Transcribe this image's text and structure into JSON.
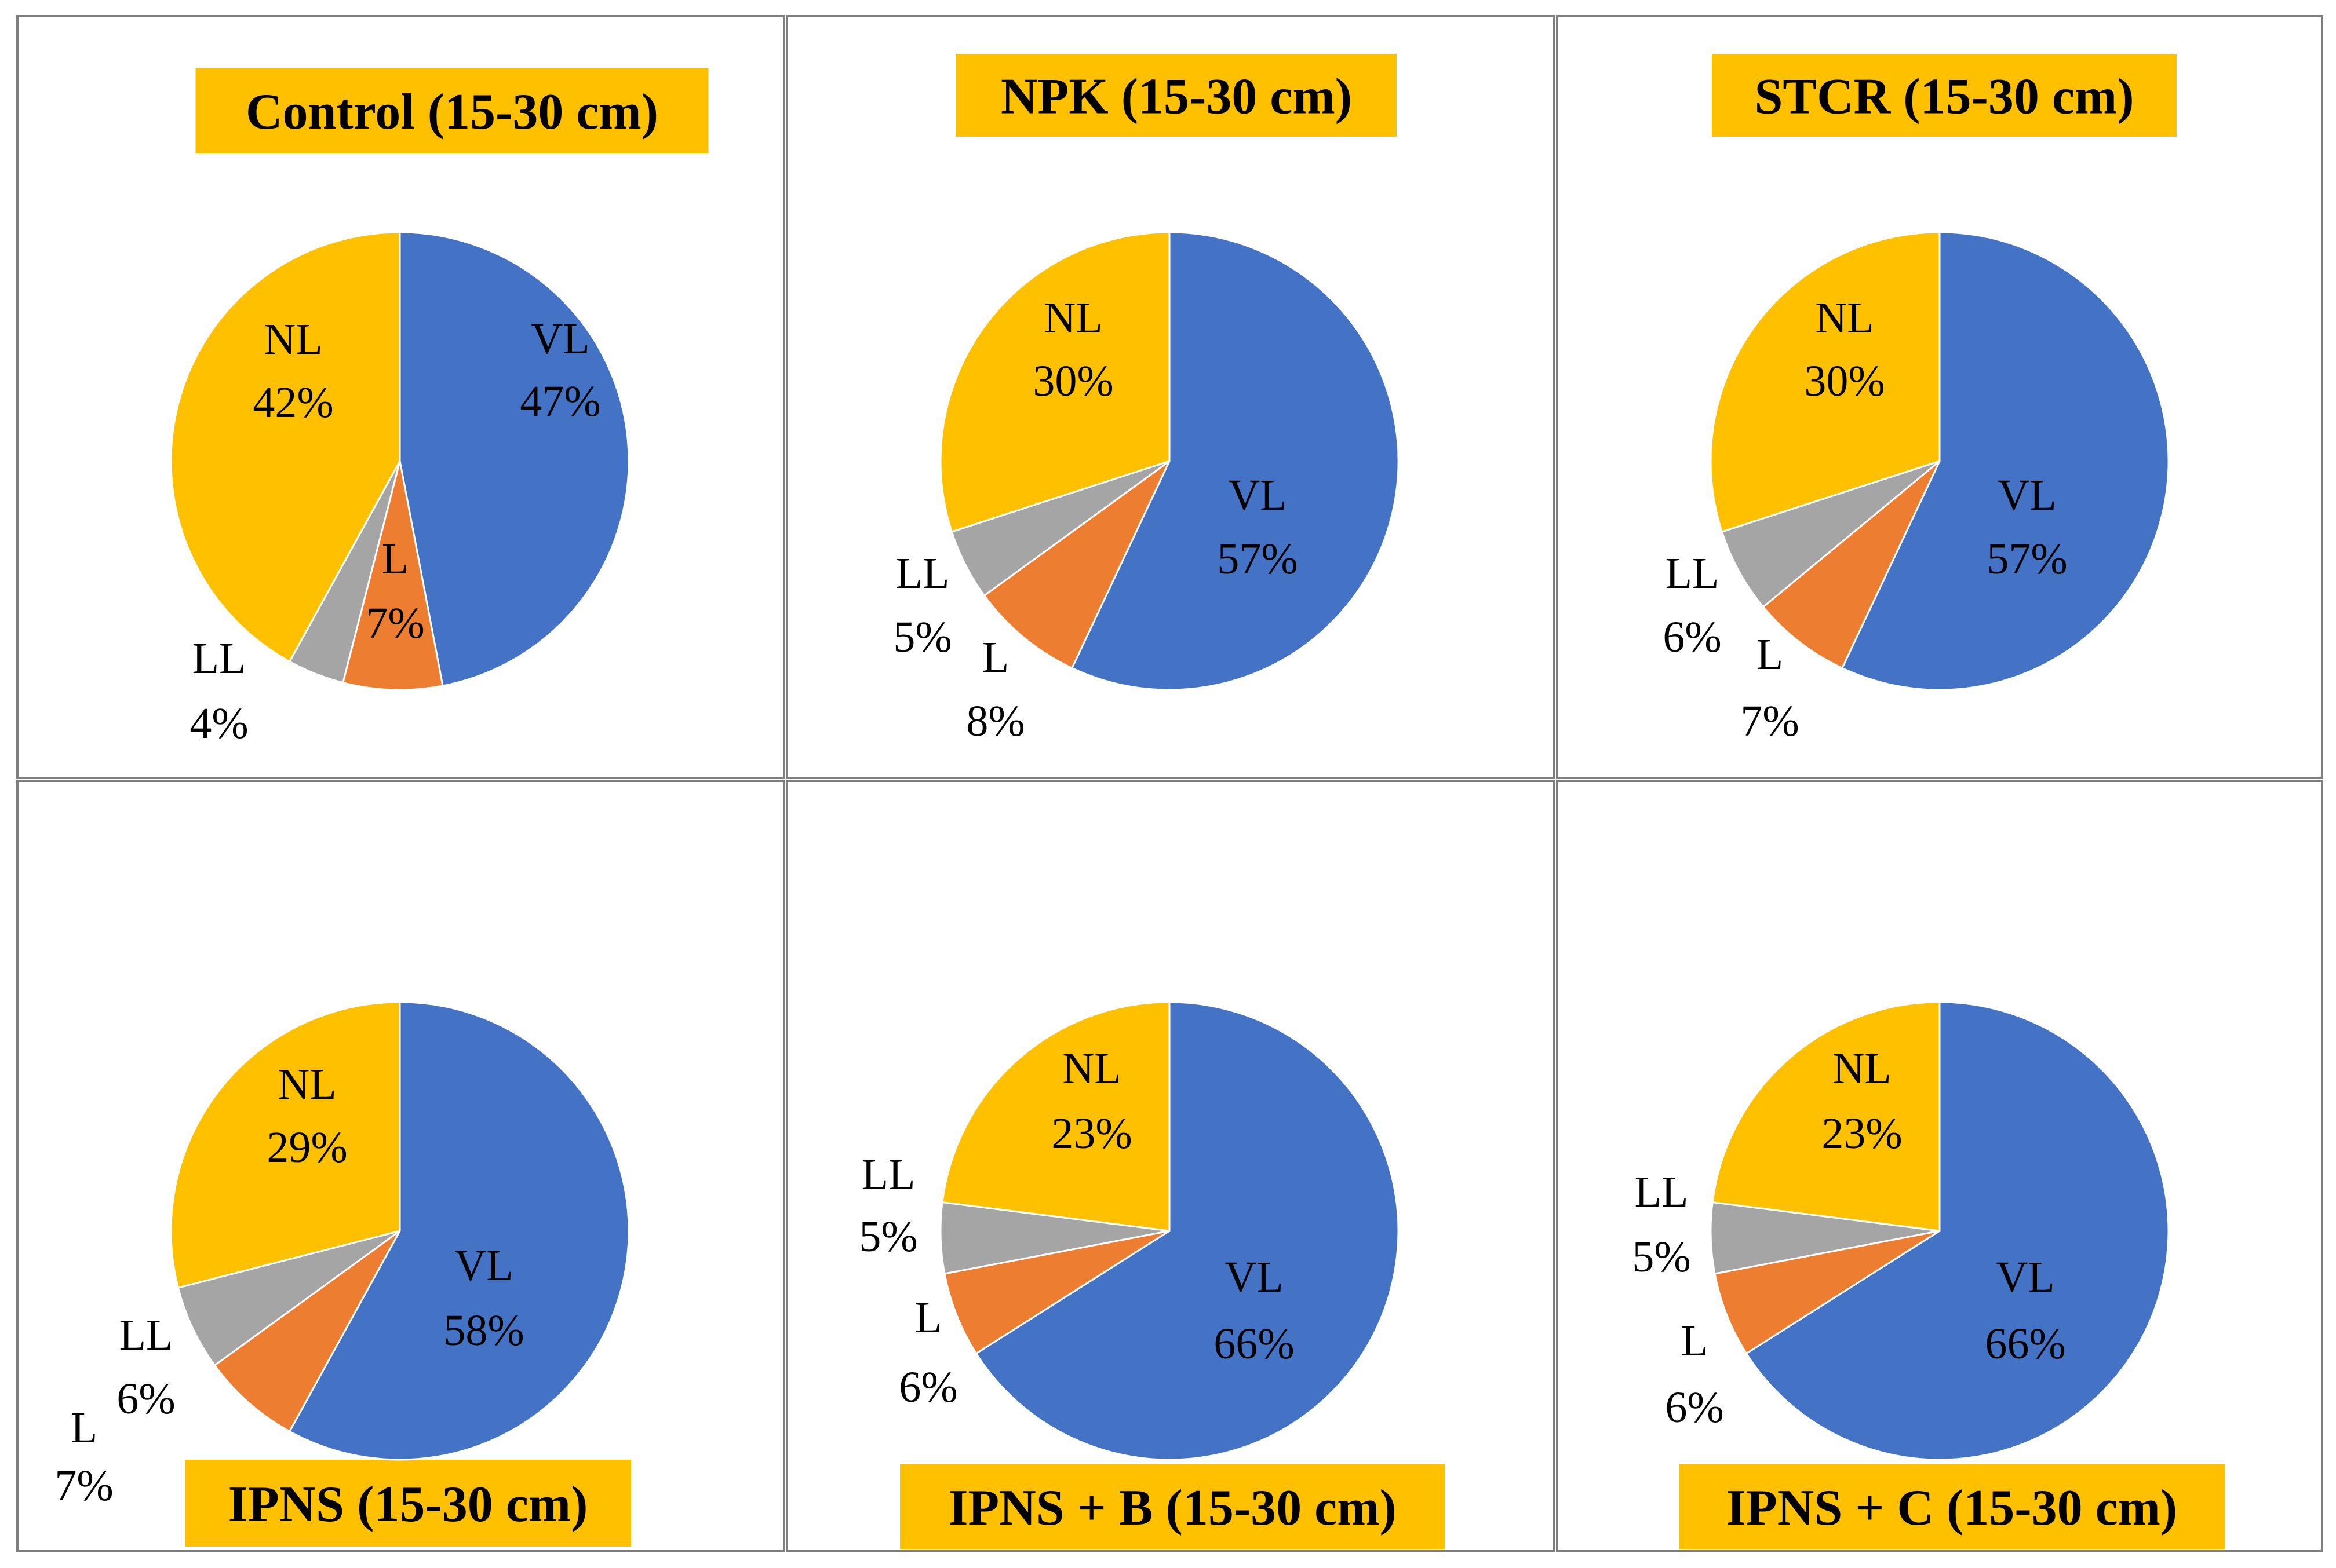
{
  "colors": {
    "VL": "#4472C4",
    "L": "#ED7D31",
    "LL": "#A5A5A5",
    "NL": "#FFC000",
    "title_bg": "#FFC000",
    "border": "#7F7F7F"
  },
  "chart_data": [
    {
      "type": "pie",
      "title": "Control (15-30 cm)",
      "title_position": "top",
      "slices": [
        {
          "category": "VL",
          "value": 47,
          "label": "47%"
        },
        {
          "category": "L",
          "value": 7,
          "label": "7%"
        },
        {
          "category": "LL",
          "value": 4,
          "label": "4%"
        },
        {
          "category": "NL",
          "value": 42,
          "label": "42%"
        }
      ]
    },
    {
      "type": "pie",
      "title": "NPK (15-30 cm)",
      "title_position": "top",
      "slices": [
        {
          "category": "VL",
          "value": 57,
          "label": "57%"
        },
        {
          "category": "L",
          "value": 8,
          "label": "8%"
        },
        {
          "category": "LL",
          "value": 5,
          "label": "5%"
        },
        {
          "category": "NL",
          "value": 30,
          "label": "30%"
        }
      ]
    },
    {
      "type": "pie",
      "title": "STCR (15-30 cm)",
      "title_position": "top",
      "slices": [
        {
          "category": "VL",
          "value": 57,
          "label": "57%"
        },
        {
          "category": "L",
          "value": 7,
          "label": "7%"
        },
        {
          "category": "LL",
          "value": 6,
          "label": "6%"
        },
        {
          "category": "NL",
          "value": 30,
          "label": "30%"
        }
      ]
    },
    {
      "type": "pie",
      "title": "IPNS (15-30 cm)",
      "title_position": "bottom",
      "slices": [
        {
          "category": "VL",
          "value": 58,
          "label": "58%"
        },
        {
          "category": "L",
          "value": 7,
          "label": "7%"
        },
        {
          "category": "LL",
          "value": 6,
          "label": "6%"
        },
        {
          "category": "NL",
          "value": 29,
          "label": "29%"
        }
      ]
    },
    {
      "type": "pie",
      "title": "IPNS + B (15-30 cm)",
      "title_position": "bottom",
      "slices": [
        {
          "category": "VL",
          "value": 66,
          "label": "66%"
        },
        {
          "category": "L",
          "value": 6,
          "label": "6%"
        },
        {
          "category": "LL",
          "value": 5,
          "label": "5%"
        },
        {
          "category": "NL",
          "value": 23,
          "label": "23%"
        }
      ]
    },
    {
      "type": "pie",
      "title": "IPNS + C (15-30 cm)",
      "title_position": "bottom",
      "slices": [
        {
          "category": "VL",
          "value": 66,
          "label": "66%"
        },
        {
          "category": "L",
          "value": 6,
          "label": "6%"
        },
        {
          "category": "LL",
          "value": 5,
          "label": "5%"
        },
        {
          "category": "NL",
          "value": 23,
          "label": "23%"
        }
      ]
    }
  ]
}
